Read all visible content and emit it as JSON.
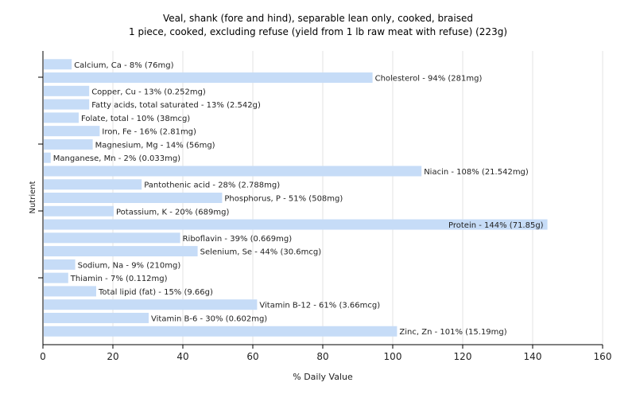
{
  "chart_data": {
    "type": "bar",
    "orientation": "horizontal",
    "title": "Veal, shank (fore and hind), separable lean only, cooked, braised",
    "subtitle": "1 piece, cooked, excluding refuse (yield from 1 lb raw meat with refuse) (223g)",
    "xlabel": "% Daily Value",
    "ylabel": "Nutrient",
    "xlim": [
      0,
      160
    ],
    "xticks": [
      0,
      20,
      40,
      60,
      80,
      100,
      120,
      140,
      160
    ],
    "grid": true,
    "bar_color": "#c6dcf7",
    "categories": [
      "Calcium, Ca",
      "Cholesterol",
      "Copper, Cu",
      "Fatty acids, total saturated",
      "Folate, total",
      "Iron, Fe",
      "Magnesium, Mg",
      "Manganese, Mn",
      "Niacin",
      "Pantothenic acid",
      "Phosphorus, P",
      "Potassium, K",
      "Protein",
      "Riboflavin",
      "Selenium, Se",
      "Sodium, Na",
      "Thiamin",
      "Total lipid (fat)",
      "Vitamin B-12",
      "Vitamin B-6",
      "Zinc, Zn"
    ],
    "values": [
      8,
      94,
      13,
      13,
      10,
      16,
      14,
      2,
      108,
      28,
      51,
      20,
      144,
      39,
      44,
      9,
      7,
      15,
      61,
      30,
      101
    ],
    "labels": [
      "Calcium, Ca - 8% (76mg)",
      "Cholesterol - 94% (281mg)",
      "Copper, Cu - 13% (0.252mg)",
      "Fatty acids, total saturated - 13% (2.542g)",
      "Folate, total - 10% (38mcg)",
      "Iron, Fe - 16% (2.81mg)",
      "Magnesium, Mg - 14% (56mg)",
      "Manganese, Mn - 2% (0.033mg)",
      "Niacin - 108% (21.542mg)",
      "Pantothenic acid - 28% (2.788mg)",
      "Phosphorus, P - 51% (508mg)",
      "Potassium, K - 20% (689mg)",
      "Protein - 144% (71.85g)",
      "Riboflavin - 39% (0.669mg)",
      "Selenium, Se - 44% (30.6mcg)",
      "Sodium, Na - 9% (210mg)",
      "Thiamin - 7% (0.112mg)",
      "Total lipid (fat) - 15% (9.66g)",
      "Vitamin B-12 - 61% (3.66mcg)",
      "Vitamin B-6 - 30% (0.602mg)",
      "Zinc, Zn - 101% (15.19mg)"
    ]
  }
}
